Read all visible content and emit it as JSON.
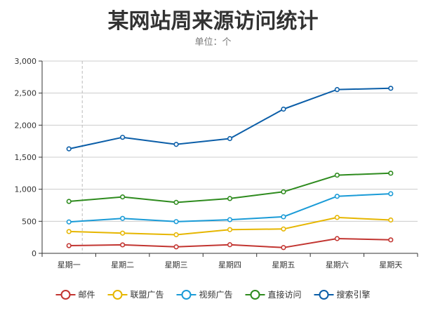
{
  "chart_data": {
    "type": "line",
    "title": "某网站周来源访问统计",
    "subtitle": "单位：个",
    "categories": [
      "星期一",
      "星期二",
      "星期三",
      "星期四",
      "星期五",
      "星期六",
      "星期天"
    ],
    "y_ticks": [
      "0",
      "500",
      "1,000",
      "1,500",
      "2,000",
      "2,500",
      "3,000"
    ],
    "ylim": [
      0,
      3000
    ],
    "grid": true,
    "legend_position": "bottom",
    "series": [
      {
        "name": "邮件",
        "color": "#c23531",
        "values": [
          120,
          132,
          101,
          134,
          90,
          230,
          210
        ]
      },
      {
        "name": "联盟广告",
        "color": "#e6b600",
        "values": [
          340,
          315,
          290,
          370,
          380,
          560,
          520
        ]
      },
      {
        "name": "视频广告",
        "color": "#1a9bd7",
        "values": [
          490,
          545,
          495,
          525,
          570,
          890,
          930
        ]
      },
      {
        "name": "直接访问",
        "color": "#2e8b1e",
        "values": [
          810,
          880,
          795,
          855,
          960,
          1220,
          1250
        ]
      },
      {
        "name": "搜索引擎",
        "color": "#0b5ea8",
        "values": [
          1630,
          1810,
          1700,
          1790,
          2250,
          2555,
          2575
        ]
      }
    ]
  }
}
